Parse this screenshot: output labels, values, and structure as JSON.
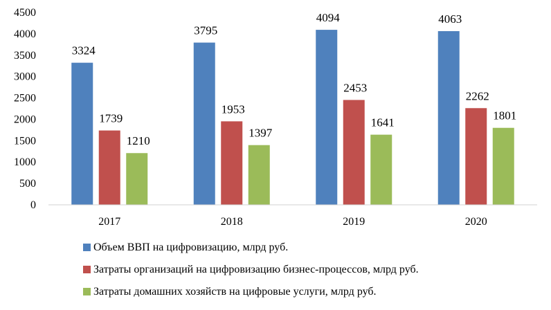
{
  "chart_data": {
    "type": "bar",
    "categories": [
      "2017",
      "2018",
      "2019",
      "2020"
    ],
    "series": [
      {
        "name": "Объем ВВП на цифровизацию, млрд руб.",
        "color": "#4f81bd",
        "values": [
          3324,
          3795,
          4094,
          4063
        ]
      },
      {
        "name": "Затраты организаций на цифровизацию бизнес-процессов, млрд руб.",
        "color": "#c0504d",
        "values": [
          1739,
          1953,
          2453,
          2262
        ]
      },
      {
        "name": "Затраты домашних хозяйств на цифровые услуги, млрд руб.",
        "color": "#9bbb59",
        "values": [
          1210,
          1397,
          1641,
          1801
        ]
      }
    ],
    "yticks": [
      "0",
      "500",
      "1000",
      "1500",
      "2000",
      "2500",
      "3000",
      "3500",
      "4000",
      "4500"
    ],
    "ylim": [
      0,
      4500
    ],
    "grid": false,
    "legend_position": "bottom",
    "title": "",
    "xlabel": "",
    "ylabel": ""
  }
}
